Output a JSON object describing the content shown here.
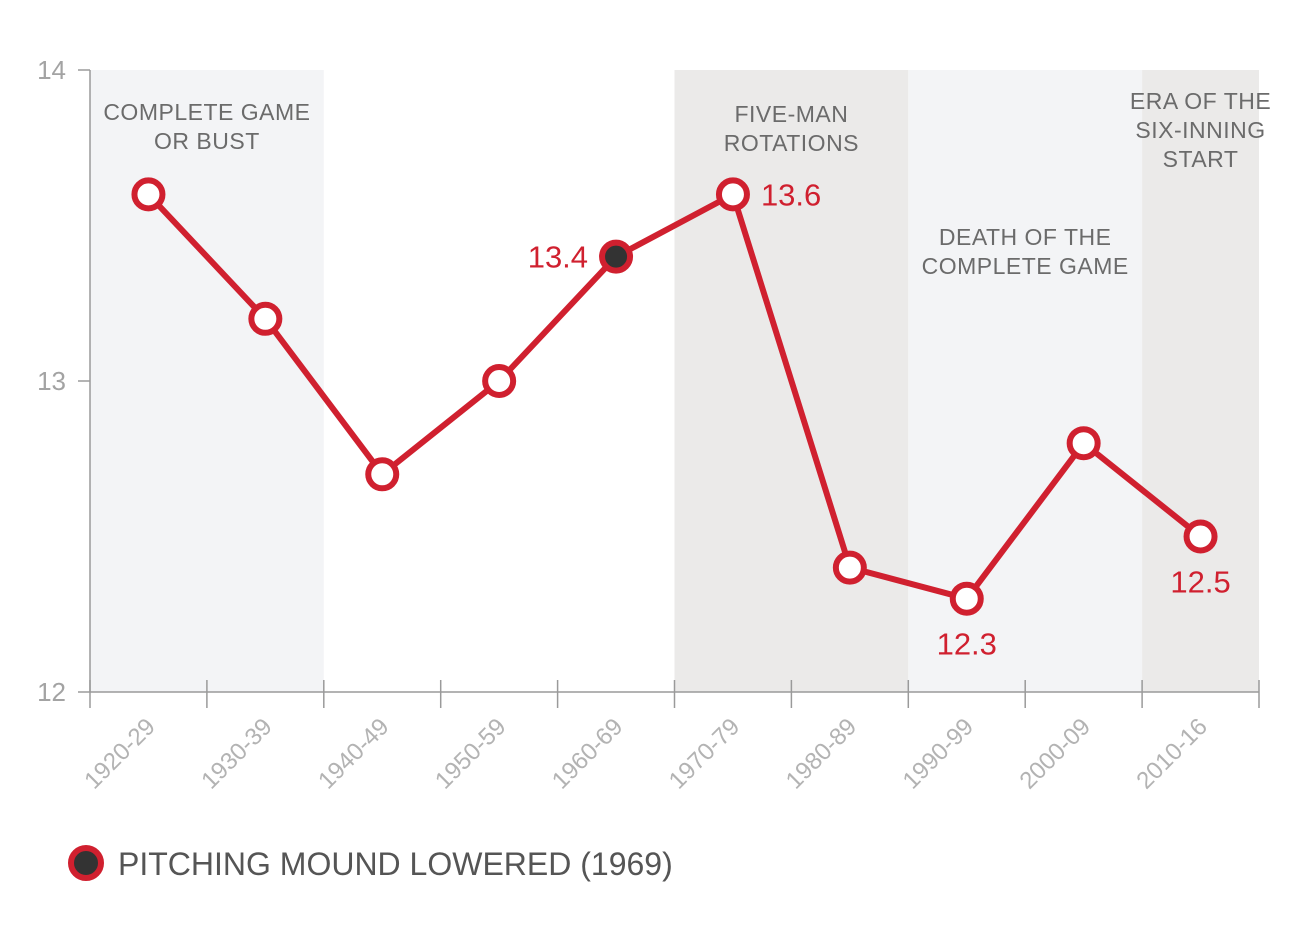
{
  "chart_data": {
    "type": "line",
    "categories": [
      "1920-29",
      "1930-39",
      "1940-49",
      "1950-59",
      "1960-69",
      "1970-79",
      "1980-89",
      "1990-99",
      "2000-09",
      "2010-16"
    ],
    "values": [
      13.6,
      13.2,
      12.7,
      13.0,
      13.4,
      13.6,
      12.4,
      12.3,
      12.8,
      12.5
    ],
    "ylim": [
      12,
      14
    ],
    "y_ticks": [
      "12",
      "13",
      "14"
    ],
    "data_labels": [
      {
        "index": 4,
        "text": "13.4",
        "side": "left"
      },
      {
        "index": 5,
        "text": "13.6",
        "side": "right"
      },
      {
        "index": 7,
        "text": "12.3",
        "side": "below"
      },
      {
        "index": 9,
        "text": "12.5",
        "side": "below"
      }
    ],
    "highlight_index": 4,
    "eras": [
      {
        "label": [
          "COMPLETE GAME",
          "OR BUST"
        ],
        "from": 0,
        "to": 2,
        "shade": "light"
      },
      {
        "label": [
          "FIVE-MAN",
          "ROTATIONS"
        ],
        "from": 5,
        "to": 7,
        "shade": "dark"
      },
      {
        "label": [
          "DEATH OF THE",
          "COMPLETE GAME"
        ],
        "from": 7,
        "to": 9,
        "shade": "light"
      },
      {
        "label": [
          "ERA OF THE",
          "SIX-INNING",
          "START"
        ],
        "from": 9,
        "to": 10,
        "shade": "dark"
      }
    ],
    "legend": {
      "label": "PITCHING MOUND LOWERED (1969)",
      "placement": "bottom-left"
    },
    "grid": false
  },
  "colors": {
    "line": "#d0202f",
    "highlight_fill": "#333333",
    "marker_fill": "#ffffff",
    "shade_light": "#f3f4f6",
    "shade_dark": "#ebeae9",
    "axis": "#9a9a9a",
    "data_label": "#d0202f"
  }
}
